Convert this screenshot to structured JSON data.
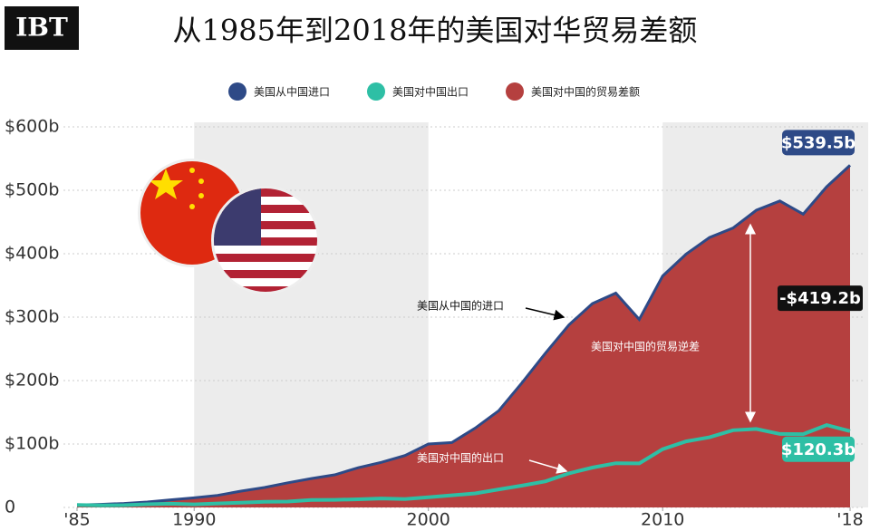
{
  "chart_data": {
    "type": "area",
    "title": "从1985年到2018年的美国对华贸易差额",
    "logo": "IBT",
    "x": [
      1985,
      1986,
      1987,
      1988,
      1989,
      1990,
      1991,
      1992,
      1993,
      1994,
      1995,
      1996,
      1997,
      1998,
      1999,
      2000,
      2001,
      2002,
      2003,
      2004,
      2005,
      2006,
      2007,
      2008,
      2009,
      2010,
      2011,
      2012,
      2013,
      2014,
      2015,
      2016,
      2017,
      2018
    ],
    "series": [
      {
        "name": "美国从中国进口",
        "color": "#2e4a87",
        "values": [
          3.9,
          4.8,
          6.3,
          8.5,
          12,
          15.2,
          19,
          25.7,
          31.5,
          38.8,
          45.5,
          51.5,
          62.6,
          71.2,
          81.8,
          100,
          102.3,
          125.2,
          152.4,
          196.7,
          243.5,
          287.8,
          321.4,
          337.8,
          296.4,
          364.9,
          399.4,
          425.6,
          440.4,
          468.5,
          483.2,
          462.4,
          505.5,
          539.5
        ],
        "value_labels": [
          null,
          null,
          null,
          null,
          null,
          null,
          null,
          null,
          null,
          null,
          null,
          null,
          null,
          null,
          null,
          null,
          null,
          null,
          null,
          null,
          null,
          null,
          null,
          null,
          null,
          null,
          null,
          null,
          null,
          null,
          null,
          null,
          null,
          "$539.5b"
        ]
      },
      {
        "name": "美国对中国出口",
        "color": "#2ebfa5",
        "values": [
          3.9,
          3.1,
          3.5,
          5.0,
          5.8,
          4.8,
          6.3,
          7.4,
          8.8,
          9.3,
          11.7,
          12.0,
          12.9,
          14.2,
          13.1,
          16.2,
          19.2,
          22.1,
          28.4,
          34.4,
          41.2,
          53.7,
          62.9,
          69.7,
          69.5,
          91.9,
          104.1,
          110.5,
          121.7,
          123.7,
          115.9,
          115.6,
          129.9,
          120.3
        ],
        "value_labels": [
          null,
          null,
          null,
          null,
          null,
          null,
          null,
          null,
          null,
          null,
          null,
          null,
          null,
          null,
          null,
          null,
          null,
          null,
          null,
          null,
          null,
          null,
          null,
          null,
          null,
          null,
          null,
          null,
          null,
          null,
          null,
          null,
          null,
          "$120.3b"
        ]
      },
      {
        "name": "美国对中国的贸易差额",
        "color": "#b5403f"
      }
    ],
    "deficit_label": {
      "value": -419.2,
      "label": "-$419.2b"
    },
    "annotations": [
      "美国从中国的进口",
      "美国对中国的出口",
      "美国对中国的贸易逆差"
    ],
    "xlim": [
      1985,
      2018
    ],
    "xticks": [
      {
        "value": 1985,
        "label": "'85"
      },
      1990,
      2000,
      2010,
      {
        "value": 2018,
        "label": "'18"
      }
    ],
    "ylim": [
      0,
      600
    ],
    "yticks": [
      0,
      {
        "value": 100,
        "label": "$100b"
      },
      {
        "value": 200,
        "label": "$200b"
      },
      {
        "value": 300,
        "label": "$300b"
      },
      {
        "value": 400,
        "label": "$400b"
      },
      {
        "value": 500,
        "label": "$500b"
      },
      {
        "value": 600,
        "label": "$600b"
      }
    ],
    "grid": true
  }
}
